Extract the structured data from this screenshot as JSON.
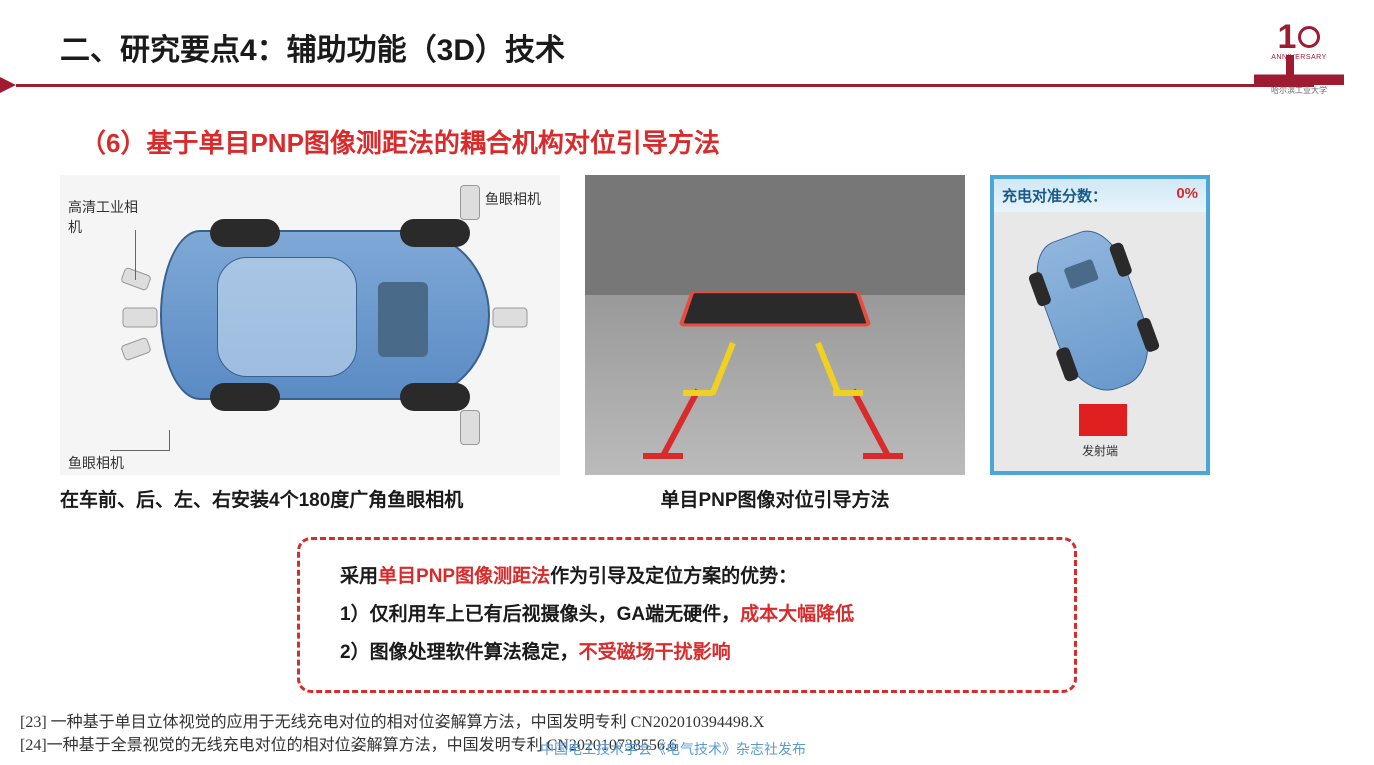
{
  "header": {
    "title": "二、研究要点4：辅助功能（3D）技术",
    "logo_year": "1",
    "logo_anniv": "ANNIVERSARY",
    "logo_sub": "哈尔滨工业大学"
  },
  "subtitle": "（6）基于单目PNP图像测距法的耦合机构对位引导方法",
  "fig1": {
    "label_hd": "高清工业相机",
    "label_fisheye": "鱼眼相机",
    "caption": "在车前、后、左、右安装4个180度广角鱼眼相机"
  },
  "fig2": {
    "caption": "单目PNP图像对位引导方法"
  },
  "fig3": {
    "head_label": "充电对准分数：",
    "head_value": "0%",
    "emitter_label": "发射端"
  },
  "box": {
    "intro_pre": "采用",
    "intro_red": "单目PNP图像测距法",
    "intro_post": "作为引导及定位方案的优势：",
    "line1_pre": "1）仅利用车上已有后视摄像头，GA端无硬件，",
    "line1_red": "成本大幅降低",
    "line2_pre": "2）图像处理软件算法稳定，",
    "line2_red": "不受磁场干扰影响"
  },
  "refs": {
    "r1": "[23] 一种基于单目立体视觉的应用于无线充电对位的相对位姿解算方法，中国发明专利 CN202010394498.X",
    "r2": "[24]一种基于全景视觉的无线充电对位的相对位姿解算方法，中国发明专利 CN202010738556.6"
  },
  "watermark": "中国电工技术学会《电气技术》杂志社发布",
  "colors": {
    "brand": "#9e1b32",
    "accent_red": "#d92b2b",
    "accent_blue": "#4aa8d8"
  }
}
